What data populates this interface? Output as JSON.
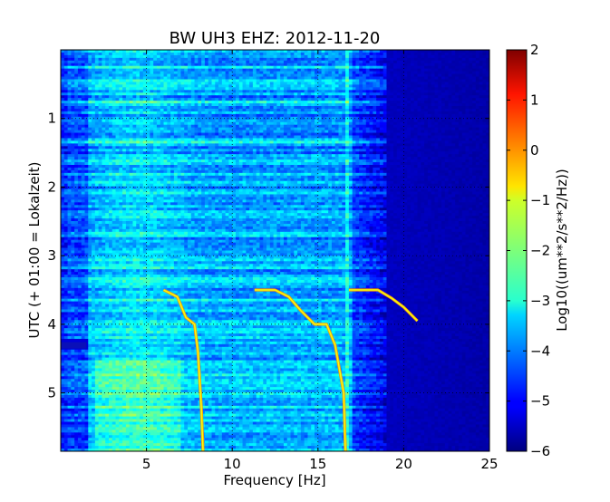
{
  "chart_data": {
    "type": "heatmap",
    "title": "BW UH3 EHZ: 2012-11-20",
    "xlabel": "Frequency [Hz]",
    "ylabel": "UTC (+ 01:00 = Lokalzeit)",
    "xlim": [
      0,
      25
    ],
    "ylim": [
      0,
      5.85
    ],
    "y_inverted": true,
    "x_ticks": [
      "5",
      "10",
      "15",
      "20",
      "25"
    ],
    "y_ticks": [
      "1",
      "2",
      "3",
      "4",
      "5"
    ],
    "grid": true,
    "colormap": "jet",
    "colorbar": {
      "label": "Log10((um**2/s**2/Hz))",
      "range": [
        -6,
        2
      ],
      "ticks": [
        "2",
        "1",
        "0",
        "−1",
        "−2",
        "−3",
        "−4",
        "−5",
        "−6"
      ]
    },
    "features": [
      {
        "name": "sweep",
        "points": [
          [
            6,
            3.5
          ],
          [
            6.8,
            3.6
          ],
          [
            7.3,
            3.9
          ],
          [
            7.8,
            4.0
          ],
          [
            8.0,
            4.4
          ],
          [
            8.2,
            5.2
          ],
          [
            8.3,
            5.85
          ]
        ]
      },
      {
        "name": "sweep",
        "points": [
          [
            11.3,
            3.5
          ],
          [
            12.5,
            3.5
          ],
          [
            13.3,
            3.6
          ],
          [
            14.0,
            3.8
          ],
          [
            14.8,
            4.0
          ],
          [
            15.5,
            4.0
          ],
          [
            16.0,
            4.3
          ],
          [
            16.5,
            5.0
          ],
          [
            16.6,
            5.85
          ]
        ]
      },
      {
        "name": "sweep",
        "points": [
          [
            16.8,
            3.5
          ],
          [
            18.5,
            3.5
          ],
          [
            19.3,
            3.62
          ],
          [
            20.0,
            3.75
          ],
          [
            20.8,
            3.95
          ]
        ]
      },
      {
        "name": "burst",
        "points": [
          [
            0,
            4.3
          ],
          [
            1.5,
            4.3
          ]
        ]
      }
    ]
  }
}
